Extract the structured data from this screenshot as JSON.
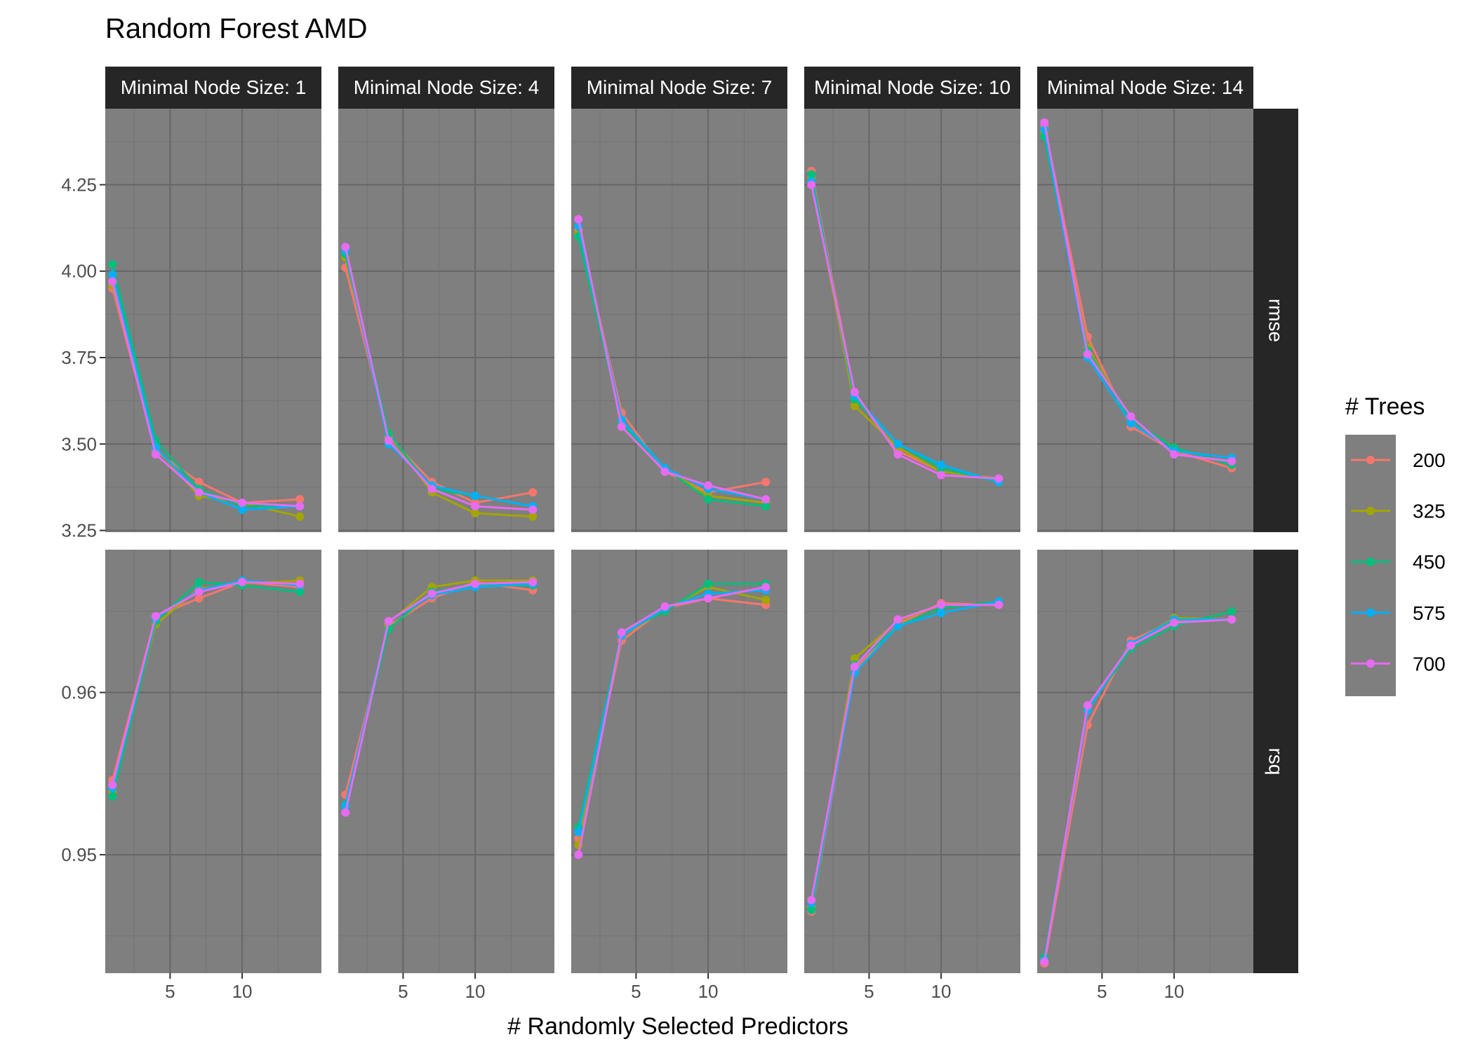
{
  "chart_data": {
    "type": "line",
    "title": "Random Forest AMD",
    "xlabel": "# Randomly Selected Predictors",
    "ylabel": "",
    "x_ticks": [
      5,
      10
    ],
    "x_range": [
      0.5,
      15.5
    ],
    "grid": true,
    "legend_position": "right",
    "legend": {
      "title": "# Trees",
      "entries": [
        {
          "label": "200",
          "color": "#F8766D"
        },
        {
          "label": "325",
          "color": "#A3A500"
        },
        {
          "label": "450",
          "color": "#00BF7D"
        },
        {
          "label": "575",
          "color": "#00B0F6"
        },
        {
          "label": "700",
          "color": "#E76BF3"
        }
      ]
    },
    "facet_columns": [
      {
        "label": "Minimal Node Size: 1"
      },
      {
        "label": "Minimal Node Size: 4"
      },
      {
        "label": "Minimal Node Size: 7"
      },
      {
        "label": "Minimal Node Size: 10"
      },
      {
        "label": "Minimal Node Size: 14"
      }
    ],
    "facet_rows": [
      {
        "label": "rmse",
        "ylim": [
          3.245,
          4.47
        ],
        "y_ticks": [
          3.25,
          3.5,
          3.75,
          4.0,
          4.25
        ],
        "y_tick_labels": [
          "3.25",
          "3.50",
          "3.75",
          "4.00",
          "4.25"
        ]
      },
      {
        "label": "rsq",
        "ylim": [
          0.9427,
          0.9688
        ],
        "y_ticks": [
          0.95,
          0.96
        ],
        "y_tick_labels": [
          "0.95",
          "0.96"
        ]
      }
    ],
    "x": [
      1,
      4,
      7,
      10,
      14
    ],
    "panels": {
      "rmse": [
        {
          "200": [
            3.95,
            3.48,
            3.39,
            3.33,
            3.34
          ],
          "325": [
            3.96,
            3.49,
            3.35,
            3.33,
            3.29
          ],
          "450": [
            4.02,
            3.51,
            3.37,
            3.32,
            3.32
          ],
          "575": [
            3.99,
            3.49,
            3.36,
            3.31,
            3.32
          ],
          "700": [
            3.97,
            3.47,
            3.36,
            3.33,
            3.32
          ]
        },
        {
          "200": [
            4.01,
            3.52,
            3.39,
            3.33,
            3.36
          ],
          "325": [
            4.04,
            3.53,
            3.36,
            3.3,
            3.29
          ],
          "450": [
            4.05,
            3.53,
            3.37,
            3.35,
            3.32
          ],
          "575": [
            4.06,
            3.5,
            3.38,
            3.35,
            3.32
          ],
          "700": [
            4.07,
            3.51,
            3.37,
            3.32,
            3.31
          ]
        },
        {
          "200": [
            4.12,
            3.59,
            3.42,
            3.36,
            3.39
          ],
          "325": [
            4.11,
            3.56,
            3.43,
            3.35,
            3.33
          ],
          "450": [
            4.1,
            3.56,
            3.43,
            3.34,
            3.32
          ],
          "575": [
            4.13,
            3.57,
            3.43,
            3.37,
            3.34
          ],
          "700": [
            4.15,
            3.55,
            3.42,
            3.38,
            3.34
          ]
        },
        {
          "200": [
            4.29,
            3.64,
            3.48,
            3.42,
            3.4
          ],
          "325": [
            4.27,
            3.61,
            3.49,
            3.42,
            3.4
          ],
          "450": [
            4.28,
            3.63,
            3.5,
            3.43,
            3.39
          ],
          "575": [
            4.26,
            3.64,
            3.5,
            3.44,
            3.39
          ],
          "700": [
            4.25,
            3.65,
            3.47,
            3.41,
            3.4
          ]
        },
        {
          "200": [
            4.42,
            3.81,
            3.55,
            3.48,
            3.43
          ],
          "325": [
            4.4,
            3.78,
            3.57,
            3.49,
            3.44
          ],
          "450": [
            4.39,
            3.77,
            3.57,
            3.49,
            3.44
          ],
          "575": [
            4.41,
            3.75,
            3.56,
            3.48,
            3.46
          ],
          "700": [
            4.43,
            3.76,
            3.58,
            3.47,
            3.45
          ]
        }
      ],
      "rsq": [
        {
          "200": [
            0.9546,
            0.9647,
            0.9658,
            0.9668,
            0.9665
          ],
          "325": [
            0.9539,
            0.9642,
            0.9664,
            0.9667,
            0.9669
          ],
          "450": [
            0.9536,
            0.9644,
            0.9668,
            0.9666,
            0.9662
          ],
          "575": [
            0.9541,
            0.9646,
            0.9663,
            0.9669,
            0.9666
          ],
          "700": [
            0.9543,
            0.9647,
            0.9662,
            0.9668,
            0.9667
          ]
        },
        {
          "200": [
            0.9537,
            0.9641,
            0.9658,
            0.9668,
            0.9663
          ],
          "325": [
            0.953,
            0.9643,
            0.9665,
            0.9669,
            0.9669
          ],
          "450": [
            0.9531,
            0.9639,
            0.9662,
            0.9666,
            0.9666
          ],
          "575": [
            0.953,
            0.9644,
            0.966,
            0.9665,
            0.9667
          ],
          "700": [
            0.9526,
            0.9644,
            0.9661,
            0.9667,
            0.9668
          ]
        },
        {
          "200": [
            0.951,
            0.9632,
            0.9652,
            0.9658,
            0.9654
          ],
          "325": [
            0.9506,
            0.9635,
            0.9651,
            0.9665,
            0.9657
          ],
          "450": [
            0.9517,
            0.9637,
            0.965,
            0.9667,
            0.9667
          ],
          "575": [
            0.9514,
            0.9635,
            0.9652,
            0.9661,
            0.9663
          ],
          "700": [
            0.95,
            0.9637,
            0.9653,
            0.9658,
            0.9665
          ]
        },
        {
          "200": [
            0.9465,
            0.9614,
            0.9642,
            0.9655,
            0.9654
          ],
          "325": [
            0.9468,
            0.9621,
            0.9644,
            0.9654,
            0.9654
          ],
          "450": [
            0.9466,
            0.9617,
            0.9641,
            0.9652,
            0.9656
          ],
          "575": [
            0.947,
            0.9612,
            0.9641,
            0.9649,
            0.9656
          ],
          "700": [
            0.9472,
            0.9616,
            0.9645,
            0.9654,
            0.9654
          ]
        },
        {
          "200": [
            0.9433,
            0.958,
            0.9632,
            0.9644,
            0.9645
          ],
          "325": [
            0.9436,
            0.9589,
            0.9629,
            0.9646,
            0.9645
          ],
          "450": [
            0.9437,
            0.959,
            0.9627,
            0.9641,
            0.965
          ],
          "575": [
            0.9435,
            0.9589,
            0.963,
            0.9645,
            0.9645
          ],
          "700": [
            0.9434,
            0.9592,
            0.9629,
            0.9643,
            0.9645
          ]
        }
      ]
    }
  }
}
